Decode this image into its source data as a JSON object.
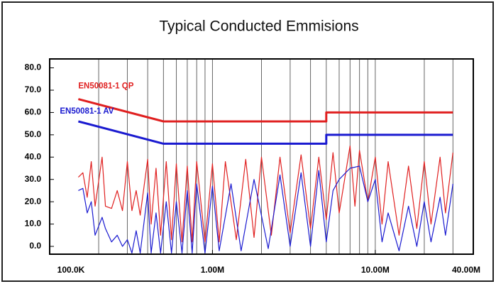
{
  "chart_data": {
    "type": "line",
    "title": "Typical Conducted Emmisions",
    "xscale": "log",
    "xlim": [
      100000,
      40000000
    ],
    "ylim": [
      -3.5,
      84
    ],
    "xticks": [
      {
        "value": 100000,
        "label": "100.0K"
      },
      {
        "value": 1000000,
        "label": "1.00M"
      },
      {
        "value": 10000000,
        "label": "10.00M"
      },
      {
        "value": 40000000,
        "label": "40.00M"
      }
    ],
    "yticks": [
      {
        "value": 0,
        "label": "0.0"
      },
      {
        "value": 10,
        "label": "10.0"
      },
      {
        "value": 20,
        "label": "20.0"
      },
      {
        "value": 30,
        "label": "30.0"
      },
      {
        "value": 40,
        "label": "40.0"
      },
      {
        "value": 50,
        "label": "50.0"
      },
      {
        "value": 60,
        "label": "60.0"
      },
      {
        "value": 70,
        "label": "70.0"
      },
      {
        "value": 80,
        "label": "80.0"
      }
    ],
    "xgrid": [
      200000,
      300000,
      400000,
      500000,
      600000,
      700000,
      800000,
      900000,
      1000000,
      2000000,
      3000000,
      4000000,
      5000000,
      6000000,
      7000000,
      8000000,
      9000000,
      10000000,
      20000000,
      30000000
    ],
    "series": [
      {
        "name": "EN50081-1 QP",
        "color": "#e02020",
        "width": 3,
        "x": [
          150000,
          500000,
          5000000,
          5000000,
          30000000
        ],
        "values": [
          66,
          56,
          56,
          60,
          60
        ]
      },
      {
        "name": "EN50081-1 AV",
        "color": "#1a1ad0",
        "width": 3,
        "x": [
          150000,
          500000,
          5000000,
          5000000,
          30000000
        ],
        "values": [
          56,
          46,
          46,
          50,
          50
        ]
      },
      {
        "color": "#e02020",
        "width": 1.2,
        "x": [
          150000,
          160000,
          170000,
          180000,
          190000,
          210000,
          220000,
          240000,
          260000,
          280000,
          300000,
          320000,
          340000,
          360000,
          400000,
          420000,
          450000,
          480000,
          520000,
          560000,
          600000,
          650000,
          700000,
          750000,
          800000,
          900000,
          1000000,
          1100000,
          1200000,
          1400000,
          1600000,
          1800000,
          2000000,
          2300000,
          2600000,
          3000000,
          3500000,
          4000000,
          4500000,
          5000000,
          5500000,
          6000000,
          7000000,
          7500000,
          8000000,
          9000000,
          10000000,
          11000000,
          12000000,
          14000000,
          16000000,
          18000000,
          20000000,
          22000000,
          25000000,
          27000000,
          30000000
        ],
        "values": [
          31,
          33,
          22,
          38,
          18,
          40,
          18,
          17,
          25,
          16,
          38,
          16,
          25,
          14,
          39,
          10,
          35,
          5,
          38,
          3,
          37,
          2,
          36,
          2,
          38,
          2,
          37,
          2,
          38,
          3,
          39,
          4,
          40,
          5,
          40,
          6,
          41,
          8,
          40,
          12,
          42,
          15,
          45,
          18,
          43,
          20,
          40,
          10,
          38,
          5,
          36,
          8,
          38,
          10,
          40,
          15,
          42
        ]
      },
      {
        "color": "#1a1ad0",
        "width": 1.2,
        "x": [
          150000,
          160000,
          170000,
          180000,
          190000,
          210000,
          220000,
          240000,
          260000,
          280000,
          300000,
          320000,
          340000,
          360000,
          400000,
          420000,
          450000,
          480000,
          520000,
          560000,
          600000,
          650000,
          700000,
          750000,
          800000,
          900000,
          1000000,
          1100000,
          1300000,
          1500000,
          1800000,
          2200000,
          2600000,
          3000000,
          3500000,
          4000000,
          4500000,
          5000000,
          5500000,
          6000000,
          7000000,
          8000000,
          9000000,
          10000000,
          11000000,
          12000000,
          14000000,
          16000000,
          18000000,
          20000000,
          22000000,
          25000000,
          27000000,
          30000000
        ],
        "values": [
          25,
          26,
          15,
          20,
          5,
          13,
          8,
          2,
          5,
          0,
          3,
          -3,
          7,
          -3,
          24,
          -3,
          15,
          -3,
          20,
          -3,
          20,
          -3,
          25,
          -3,
          28,
          -3,
          27,
          -2,
          28,
          -2,
          30,
          -1,
          32,
          0,
          33,
          0,
          34,
          2,
          25,
          30,
          35,
          36,
          20,
          30,
          2,
          15,
          -2,
          18,
          0,
          20,
          2,
          22,
          5,
          28
        ]
      }
    ]
  }
}
